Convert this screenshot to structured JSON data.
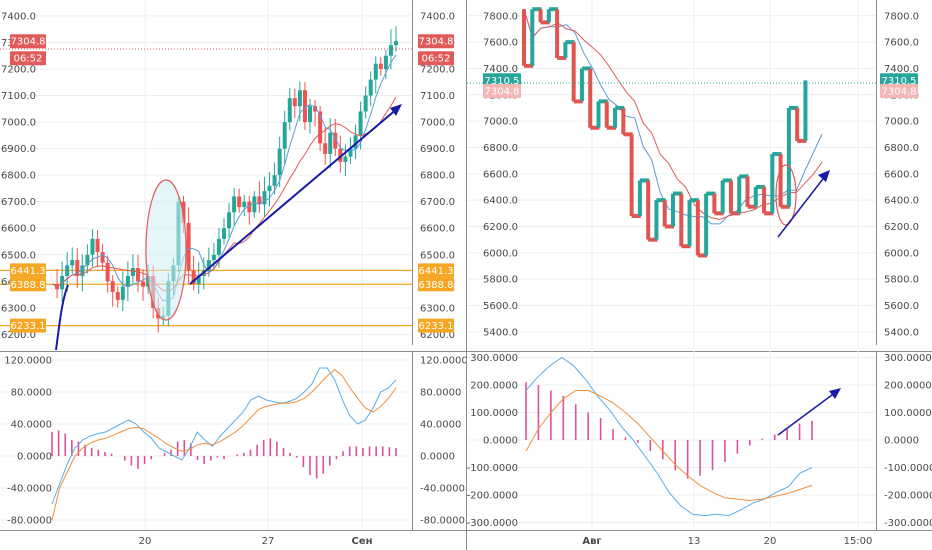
{
  "colors": {
    "up": "#26a69a",
    "down": "#ef5350",
    "kagi_up": "#26a69a",
    "kagi_down": "#e05550",
    "ma_fast": "#5b9bd5",
    "ma_slow": "#e05a5a",
    "macd": "#5aaee8",
    "signal": "#f0903c",
    "hist": "#e0509a",
    "level": "#f5a623",
    "trend": "#1a1aa8",
    "price_tag": "#e05a5a",
    "kagi_tag": "#26a69a"
  },
  "chart_data": [
    {
      "type": "candlestick",
      "panel": "left-price",
      "x_tick_labels": [
        "20",
        "27",
        "Сен"
      ],
      "y_ticks": [
        "6200.0",
        "6300.0",
        "6400.0",
        "6500.0",
        "6600.0",
        "6700.0",
        "6800.0",
        "6900.0",
        "7000.0",
        "7100.0",
        "7200.0",
        "7300.0",
        "7400.0"
      ],
      "ylim": [
        6160,
        7460
      ],
      "last_price": 7304.8,
      "tags": [
        {
          "label": "7304.8",
          "kind": "price"
        },
        {
          "label": "06:52",
          "kind": "price"
        },
        {
          "label": "6441.3",
          "kind": "level"
        },
        {
          "label": "6388.8",
          "kind": "level"
        },
        {
          "label": "6233.1",
          "kind": "level"
        }
      ],
      "levels": [
        6441.3,
        6388.8,
        6233.1
      ],
      "close_path": [
        6390,
        6370,
        6420,
        6460,
        6480,
        6420,
        6460,
        6500,
        6560,
        6510,
        6470,
        6400,
        6360,
        6330,
        6380,
        6420,
        6450,
        6400,
        6380,
        6420,
        6300,
        6260,
        6270,
        6400,
        6460,
        6700,
        6620,
        6440,
        6390,
        6420,
        6440,
        6480,
        6500,
        6560,
        6600,
        6660,
        6720,
        6680,
        6700,
        6660,
        6720,
        6690,
        6740,
        6760,
        6800,
        6900,
        7000,
        7090,
        7060,
        7120,
        7000,
        7060,
        7040,
        6920,
        6880,
        6960,
        6900,
        6850,
        6870,
        6900,
        6950,
        7040,
        7100,
        7160,
        7220,
        7200,
        7250,
        7290,
        7305
      ]
    },
    {
      "type": "line",
      "panel": "left-macd",
      "y_ticks": [
        "-80.0000",
        "-40.0000",
        "0.0000",
        "40.0000",
        "80.0000",
        "120.0000"
      ],
      "ylim": [
        -90,
        130
      ],
      "series": [
        {
          "values": [
            -60,
            -35,
            -10,
            10,
            20,
            25,
            28,
            30,
            35,
            40,
            45,
            40,
            30,
            22,
            10,
            5,
            0,
            -5,
            10,
            30,
            20,
            12,
            25,
            35,
            45,
            55,
            70,
            75,
            70,
            68,
            66,
            68,
            72,
            80,
            90,
            110,
            110,
            95,
            70,
            50,
            40,
            45,
            60,
            80,
            85,
            95
          ]
        },
        {
          "values": [
            -80,
            -40,
            -20,
            0,
            10,
            16,
            20,
            22,
            26,
            30,
            34,
            36,
            34,
            28,
            22,
            15,
            10,
            6,
            8,
            14,
            16,
            14,
            18,
            24,
            30,
            38,
            48,
            58,
            62,
            64,
            66,
            66,
            68,
            72,
            80,
            90,
            100,
            108,
            100,
            85,
            72,
            60,
            55,
            62,
            72,
            85
          ]
        }
      ],
      "hist_values": [
        30,
        32,
        28,
        20,
        18,
        14,
        10,
        8,
        5,
        3,
        0,
        -6,
        -12,
        -16,
        -10,
        -4,
        0,
        4,
        8,
        18,
        20,
        16,
        -5,
        -10,
        -6,
        -2,
        -4,
        0,
        2,
        4,
        8,
        14,
        20,
        22,
        18,
        10,
        4,
        -2,
        -14,
        -24,
        -28,
        -22,
        -12,
        -4,
        6,
        12,
        12,
        10,
        12,
        12,
        12,
        11,
        10
      ]
    },
    {
      "type": "kagi",
      "panel": "right-price",
      "y_ticks": [
        "5400.0",
        "5600.0",
        "5800.0",
        "6000.0",
        "6200.0",
        "6400.0",
        "6600.0",
        "6800.0",
        "7000.0",
        "7200.0",
        "7400.0",
        "7600.0",
        "7800.0"
      ],
      "ylim": [
        5300,
        7920
      ],
      "tags": [
        {
          "label": "7310.5",
          "kind": "kagi"
        },
        {
          "label": "7304.8",
          "kind": "price"
        }
      ],
      "values": [
        7850,
        7420,
        7850,
        7750,
        7850,
        7480,
        7600,
        7150,
        7400,
        6950,
        7150,
        6950,
        7100,
        6900,
        6280,
        6550,
        6100,
        6400,
        6200,
        6450,
        6050,
        6400,
        5980,
        6450,
        6300,
        6550,
        6300,
        6580,
        6350,
        6500,
        6300,
        6750,
        6350,
        7100,
        6850,
        7310
      ]
    },
    {
      "type": "line",
      "panel": "right-macd",
      "x_tick_labels": [
        "Авг",
        "13",
        "20",
        "15:00"
      ],
      "y_ticks": [
        "-300.0000",
        "-200.0000",
        "-100.0000",
        "0.0000",
        "100.0000",
        "200.0000",
        "300.0000"
      ],
      "ylim": [
        -320,
        320
      ],
      "series": [
        {
          "values": [
            180,
            230,
            270,
            300,
            270,
            220,
            160,
            110,
            50,
            0,
            -60,
            -120,
            -190,
            -240,
            -270,
            -275,
            -270,
            -275,
            -255,
            -230,
            -215,
            -190,
            -170,
            -120,
            -100
          ]
        },
        {
          "values": [
            -40,
            40,
            100,
            150,
            180,
            180,
            160,
            135,
            100,
            60,
            10,
            -40,
            -90,
            -130,
            -165,
            -190,
            -210,
            -215,
            -220,
            -215,
            -205,
            -195,
            -180,
            -165
          ]
        }
      ],
      "hist_values": [
        210,
        200,
        180,
        160,
        130,
        100,
        80,
        40,
        10,
        -10,
        -40,
        -70,
        -110,
        -140,
        -130,
        -110,
        -80,
        -50,
        -20,
        5,
        20,
        40,
        60,
        70
      ]
    }
  ]
}
